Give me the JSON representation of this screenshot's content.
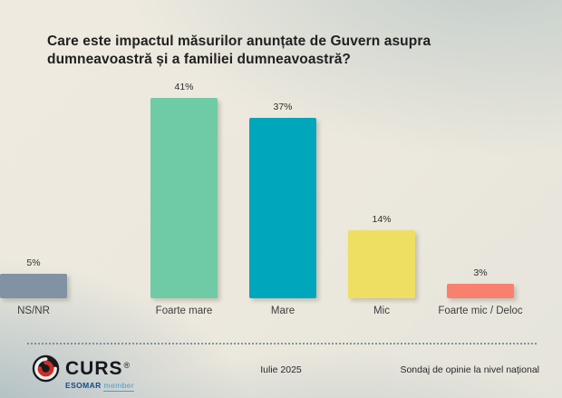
{
  "title": {
    "line1": "Care este impactul măsurilor anunțate de Guvern asupra",
    "line2": "dumneavoastră și a familiei dumneavoastră?"
  },
  "chart_data": {
    "type": "bar",
    "title": "Care este impactul măsurilor anunțate de Guvern asupra dumneavoastră și a familiei dumneavoastră?",
    "categories": [
      "Foarte mare",
      "Mare",
      "Mic",
      "Foarte mic / Deloc",
      "NS/NR"
    ],
    "values": [
      41,
      37,
      14,
      3,
      5
    ],
    "labels": [
      "41%",
      "37%",
      "14%",
      "3%",
      "5%"
    ],
    "colors": [
      "#6FCBA6",
      "#00A6BB",
      "#EEDF63",
      "#F9806E",
      "#8292A5"
    ],
    "xlabel": "",
    "ylabel": "",
    "ylim": [
      0,
      45
    ],
    "grid": false,
    "legend": "none"
  },
  "footer": {
    "brand": "CURS",
    "reg": "®",
    "esomar": "ESOMAR",
    "member": "member",
    "date": "Iulie 2025",
    "source": "Sondaj de opinie la nivel național"
  }
}
